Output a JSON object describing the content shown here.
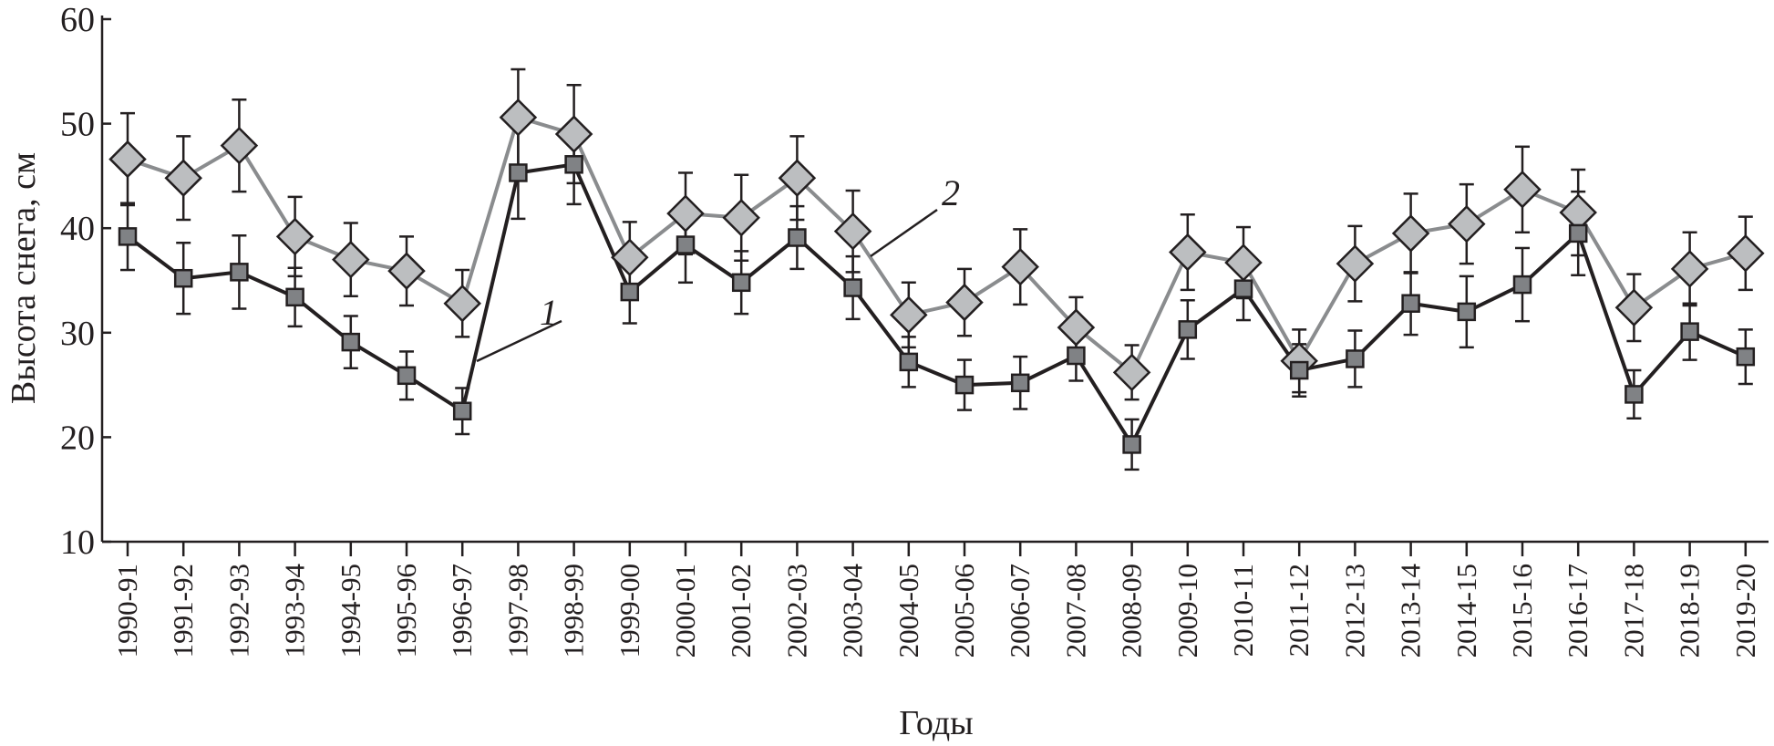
{
  "chart_data": {
    "type": "line",
    "title": "",
    "xlabel": "Годы",
    "ylabel": "Высота снега, см",
    "ylim": [
      10,
      60
    ],
    "yticks": [
      "10",
      "20",
      "30",
      "40",
      "50",
      "60"
    ],
    "grid": false,
    "categories": [
      "1990-91",
      "1991-92",
      "1992-93",
      "1993-94",
      "1994-95",
      "1995-96",
      "1996-97",
      "1997-98",
      "1998-99",
      "1999-00",
      "2000-01",
      "2001-02",
      "2002-03",
      "2003-04",
      "2004-05",
      "2005-06",
      "2006-07",
      "2007-08",
      "2008-09",
      "2009-10",
      "2010-11",
      "2011-12",
      "2012-13",
      "2013-14",
      "2014-15",
      "2015-16",
      "2016-17",
      "2017-18",
      "2018-19",
      "2019-20"
    ],
    "series": [
      {
        "name": "1",
        "marker": "square",
        "color": "#231f20",
        "marker_fill": "#808285",
        "values": [
          39.2,
          35.2,
          35.8,
          33.4,
          29.1,
          25.9,
          22.5,
          45.3,
          46.1,
          33.9,
          38.4,
          34.8,
          39.1,
          34.3,
          27.2,
          25.0,
          25.2,
          27.8,
          19.3,
          30.3,
          34.2,
          26.4,
          27.5,
          32.8,
          32.0,
          34.6,
          39.5,
          24.1,
          30.1,
          27.7
        ],
        "errors": [
          3.2,
          3.4,
          3.5,
          2.8,
          2.5,
          2.3,
          2.2,
          4.4,
          3.8,
          3.0,
          3.6,
          3.0,
          3.0,
          3.0,
          2.4,
          2.4,
          2.5,
          2.4,
          2.4,
          2.8,
          3.0,
          2.5,
          2.7,
          3.0,
          3.4,
          3.5,
          4.0,
          2.3,
          2.7,
          2.6
        ]
      },
      {
        "name": "2",
        "marker": "diamond",
        "color": "#8a8c8e",
        "marker_fill": "#bcbec0",
        "values": [
          46.6,
          44.8,
          47.9,
          39.2,
          37.0,
          35.9,
          32.8,
          50.6,
          49.0,
          37.2,
          41.4,
          41.0,
          44.8,
          39.7,
          31.7,
          32.9,
          36.3,
          30.5,
          26.2,
          37.7,
          36.7,
          27.3,
          36.6,
          39.5,
          40.4,
          43.7,
          41.5,
          32.4,
          36.1,
          37.6
        ],
        "errors": [
          4.4,
          4.0,
          4.4,
          3.8,
          3.5,
          3.3,
          3.2,
          4.6,
          4.7,
          3.4,
          3.9,
          4.1,
          4.0,
          3.9,
          3.1,
          3.2,
          3.6,
          2.9,
          2.6,
          3.6,
          3.4,
          3.0,
          3.6,
          3.8,
          3.8,
          4.1,
          4.1,
          3.2,
          3.5,
          3.5
        ]
      }
    ],
    "annotations": [
      "1",
      "2"
    ]
  }
}
